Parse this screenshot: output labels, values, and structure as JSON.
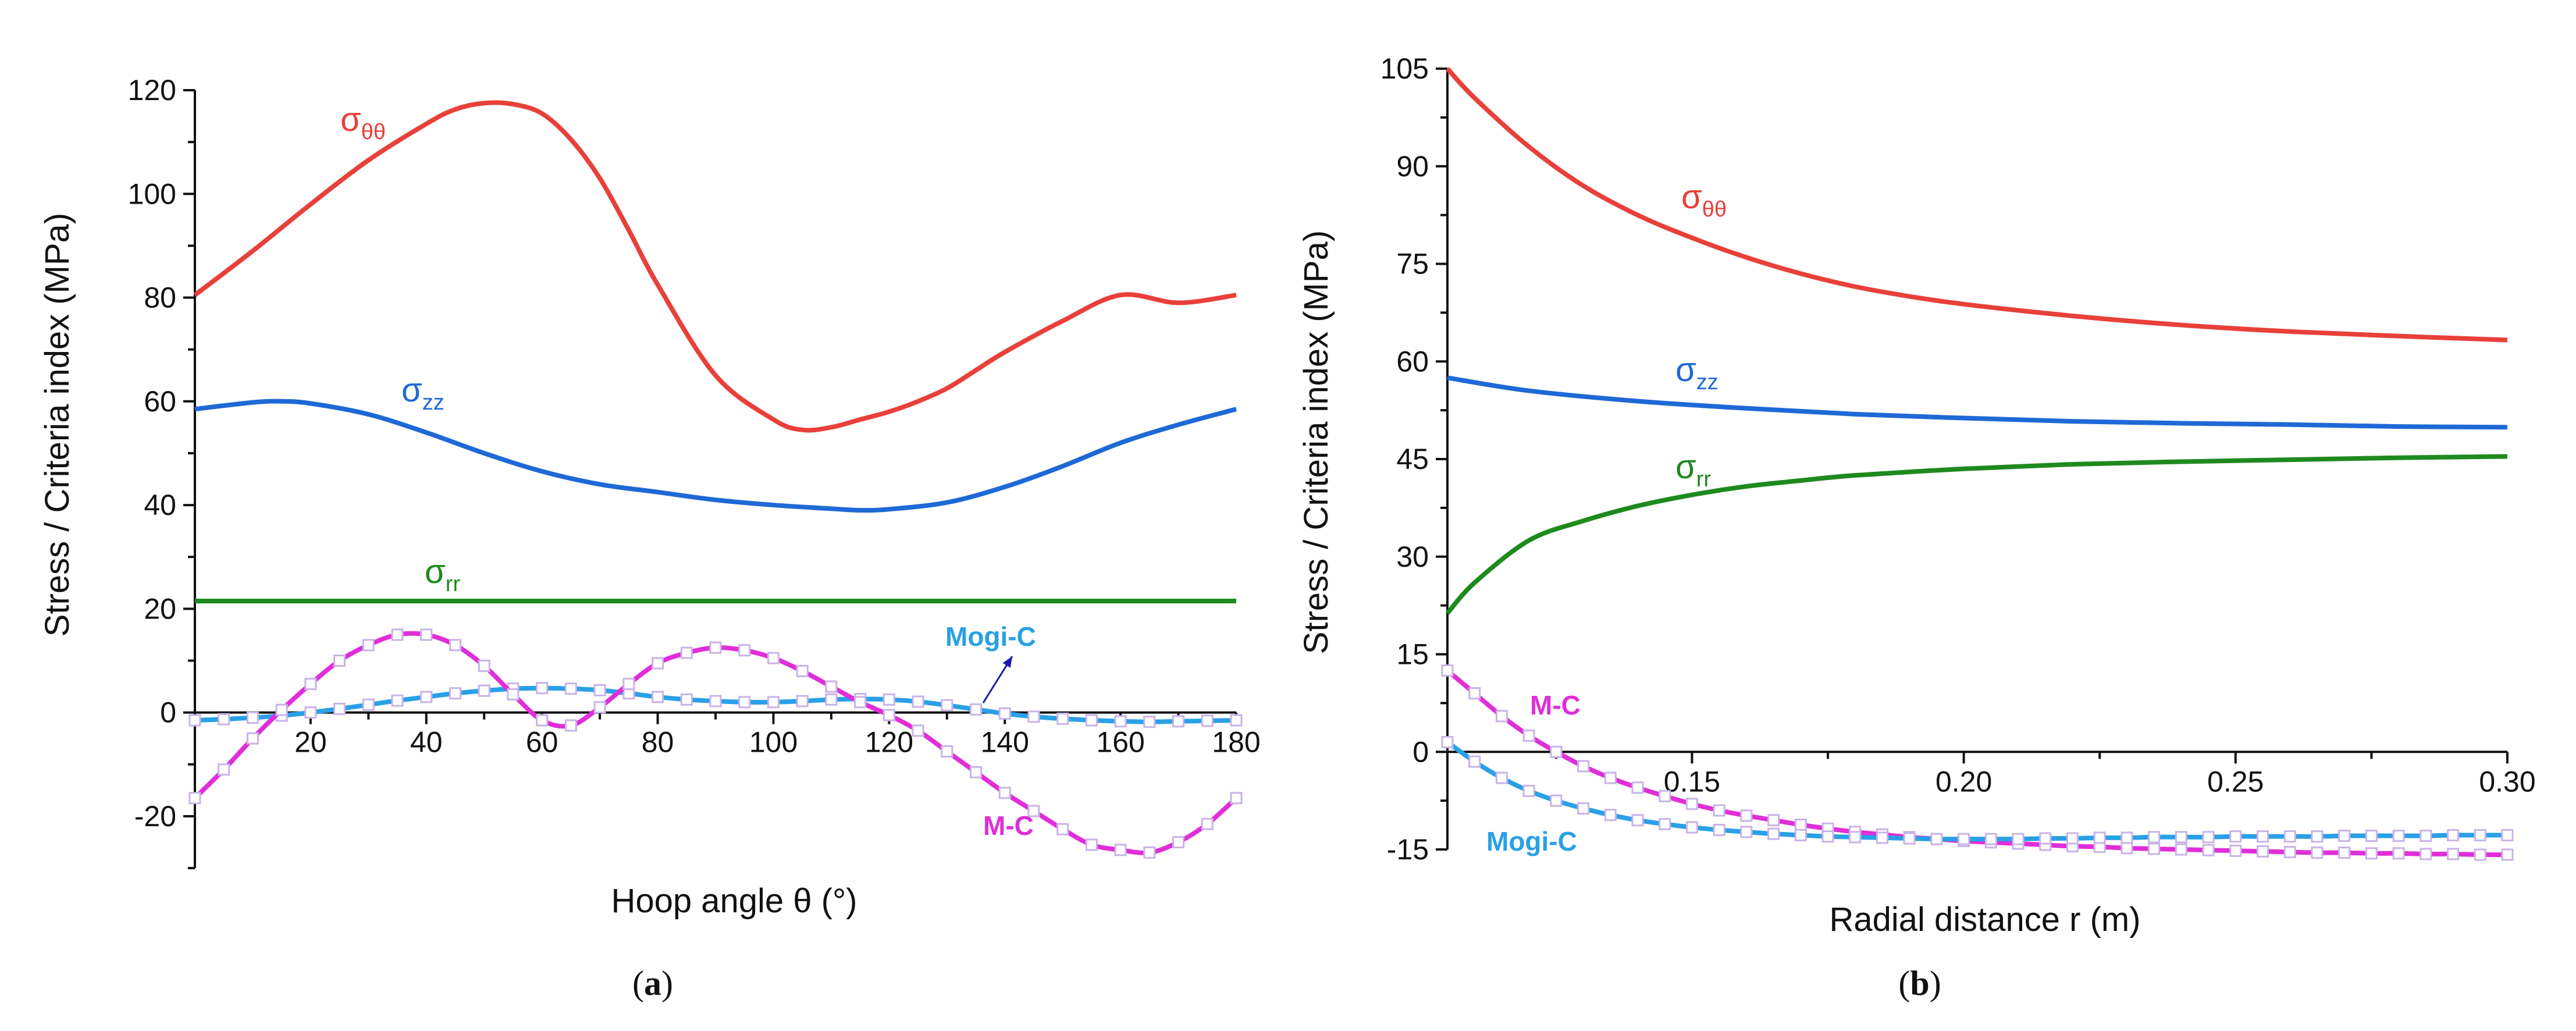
{
  "chart_data": [
    {
      "type": "line",
      "panel_label": "(a)",
      "panel_label_parts": [
        "(",
        "a",
        ")"
      ],
      "xlabel": "Hoop angle θ (°)",
      "ylabel": "Stress / Criteria index  (MPa)",
      "xlim": [
        0,
        180
      ],
      "ylim": [
        -30,
        120
      ],
      "xticks": [
        20,
        40,
        60,
        80,
        100,
        120,
        140,
        160,
        180
      ],
      "yticks": [
        120,
        100,
        80,
        60,
        40,
        20,
        0,
        -20
      ],
      "grid": false,
      "series": [
        {
          "name": "σθθ",
          "label_base": "σ",
          "label_sub": "θθ",
          "color": "#e8403a",
          "marker": "none",
          "x": [
            0,
            10,
            20,
            30,
            40,
            45,
            50,
            55,
            60,
            65,
            70,
            75,
            80,
            90,
            100,
            105,
            110,
            115,
            120,
            125,
            130,
            135,
            140,
            150,
            160,
            170,
            180
          ],
          "y": [
            80.5,
            89,
            98,
            106.5,
            113.5,
            116.3,
            117.5,
            117.3,
            115.5,
            110.5,
            103,
            93,
            82.5,
            65,
            56.5,
            54.5,
            55,
            56.5,
            58,
            60,
            62.5,
            66,
            69.5,
            75.5,
            80.5,
            79,
            80.5
          ]
        },
        {
          "name": "σzz",
          "label_base": "σ",
          "label_sub": "zz",
          "color": "#1f69d6",
          "marker": "none",
          "x": [
            0,
            10,
            15,
            20,
            30,
            40,
            50,
            60,
            70,
            80,
            90,
            100,
            110,
            115,
            120,
            130,
            140,
            150,
            160,
            170,
            180
          ],
          "y": [
            58.5,
            59.8,
            60,
            59.6,
            57.5,
            54,
            50,
            46.5,
            44,
            42.5,
            41,
            40,
            39.3,
            39,
            39.2,
            40.5,
            43.5,
            47.5,
            52,
            55.5,
            58.5
          ]
        },
        {
          "name": "σrr",
          "label_base": "σ",
          "label_sub": "rr",
          "color": "#1e8a1e",
          "marker": "none",
          "x": [
            0,
            180
          ],
          "y": [
            21.5,
            21.5
          ]
        },
        {
          "name": "Mogi-C",
          "color": "#2aa0e6",
          "marker": "square",
          "x": [
            0,
            5,
            10,
            15,
            20,
            25,
            30,
            35,
            40,
            45,
            50,
            55,
            60,
            65,
            70,
            75,
            80,
            85,
            90,
            95,
            100,
            105,
            110,
            115,
            120,
            125,
            130,
            135,
            140,
            145,
            150,
            155,
            160,
            165,
            170,
            175,
            180
          ],
          "y": [
            -1.5,
            -1.3,
            -1,
            -0.6,
            0,
            0.7,
            1.5,
            2.3,
            3,
            3.7,
            4.2,
            4.6,
            4.7,
            4.6,
            4.3,
            3.7,
            3,
            2.5,
            2.2,
            2,
            2,
            2.2,
            2.5,
            2.6,
            2.5,
            2.1,
            1.4,
            0.6,
            -0.2,
            -0.8,
            -1.2,
            -1.5,
            -1.7,
            -1.8,
            -1.7,
            -1.6,
            -1.5
          ]
        },
        {
          "name": "M-C",
          "color": "#e02ed8",
          "marker": "square",
          "x": [
            0,
            5,
            10,
            15,
            20,
            25,
            30,
            35,
            40,
            45,
            50,
            55,
            60,
            65,
            70,
            75,
            80,
            85,
            90,
            95,
            100,
            105,
            110,
            115,
            120,
            125,
            130,
            135,
            140,
            145,
            150,
            155,
            160,
            165,
            170,
            175,
            180
          ],
          "y": [
            -16.5,
            -11,
            -5,
            0.5,
            5.5,
            10,
            13,
            15,
            15,
            13,
            9,
            3.5,
            -1.5,
            -2.5,
            1,
            5.5,
            9.5,
            11.5,
            12.5,
            12,
            10.5,
            8,
            5,
            2,
            -0.5,
            -3.5,
            -7.5,
            -11.5,
            -15.5,
            -19,
            -22.5,
            -25.5,
            -26.5,
            -27,
            -25,
            -21.5,
            -16.5
          ]
        }
      ],
      "annotations": [
        {
          "text": "Mogi-C",
          "target_series": "Mogi-C",
          "arrow": true
        }
      ]
    },
    {
      "type": "line",
      "panel_label": "(b)",
      "panel_label_parts": [
        "(",
        "b",
        ")"
      ],
      "xlabel": "Radial distance r (m)",
      "ylabel": "Stress / Criteria index  (MPa)",
      "xlim": [
        0.105,
        0.3
      ],
      "ylim": [
        -15,
        105
      ],
      "xticks": [
        "0.15",
        "0.20",
        "0.25",
        "0.30"
      ],
      "yticks": [
        "105",
        "90",
        "75",
        "60",
        "45",
        "30",
        "15",
        "0",
        "-15"
      ],
      "grid": false,
      "series": [
        {
          "name": "σθθ",
          "label_base": "σ",
          "label_sub": "θθ",
          "color": "#e8403a",
          "marker": "none",
          "x": [
            0.105,
            0.11,
            0.12,
            0.13,
            0.14,
            0.15,
            0.16,
            0.17,
            0.18,
            0.19,
            0.2,
            0.22,
            0.24,
            0.26,
            0.28,
            0.3
          ],
          "y": [
            105,
            100.5,
            93,
            87,
            82.5,
            79,
            76,
            73.5,
            71.5,
            70,
            68.8,
            67,
            65.6,
            64.6,
            63.9,
            63.3
          ]
        },
        {
          "name": "σzz",
          "label_base": "σ",
          "label_sub": "zz",
          "color": "#1f69d6",
          "marker": "none",
          "x": [
            0.105,
            0.12,
            0.14,
            0.16,
            0.18,
            0.2,
            0.22,
            0.24,
            0.26,
            0.28,
            0.3
          ],
          "y": [
            57.5,
            55.5,
            53.9,
            52.8,
            51.9,
            51.3,
            50.8,
            50.5,
            50.3,
            50,
            49.9
          ]
        },
        {
          "name": "σrr",
          "label_base": "σ",
          "label_sub": "rr",
          "color": "#1e8a1e",
          "marker": "none",
          "x": [
            0.105,
            0.11,
            0.12,
            0.13,
            0.14,
            0.15,
            0.16,
            0.17,
            0.18,
            0.2,
            0.22,
            0.24,
            0.26,
            0.28,
            0.3
          ],
          "y": [
            21.3,
            26,
            32.5,
            35.5,
            37.8,
            39.5,
            40.8,
            41.7,
            42.5,
            43.5,
            44.2,
            44.6,
            44.9,
            45.2,
            45.4
          ]
        },
        {
          "name": "M-C",
          "color": "#e02ed8",
          "marker": "square",
          "x": [
            0.105,
            0.11,
            0.115,
            0.12,
            0.125,
            0.13,
            0.135,
            0.14,
            0.145,
            0.15,
            0.155,
            0.16,
            0.165,
            0.17,
            0.175,
            0.18,
            0.185,
            0.19,
            0.195,
            0.2,
            0.205,
            0.21,
            0.215,
            0.22,
            0.225,
            0.23,
            0.235,
            0.24,
            0.245,
            0.25,
            0.255,
            0.26,
            0.265,
            0.27,
            0.275,
            0.28,
            0.285,
            0.29,
            0.295,
            0.3
          ],
          "y": [
            12.5,
            9,
            5.5,
            2.5,
            0,
            -2.2,
            -4,
            -5.5,
            -6.8,
            -8,
            -9,
            -9.8,
            -10.5,
            -11.2,
            -11.8,
            -12.3,
            -12.7,
            -13.1,
            -13.4,
            -13.7,
            -13.9,
            -14.1,
            -14.3,
            -14.5,
            -14.6,
            -14.8,
            -14.9,
            -15,
            -15.1,
            -15.2,
            -15.3,
            -15.4,
            -15.5,
            -15.5,
            -15.6,
            -15.6,
            -15.7,
            -15.7,
            -15.8,
            -15.8
          ]
        },
        {
          "name": "Mogi-C",
          "color": "#2aa0e6",
          "marker": "square",
          "x": [
            0.105,
            0.11,
            0.115,
            0.12,
            0.125,
            0.13,
            0.135,
            0.14,
            0.145,
            0.15,
            0.155,
            0.16,
            0.165,
            0.17,
            0.175,
            0.18,
            0.185,
            0.19,
            0.195,
            0.2,
            0.205,
            0.21,
            0.215,
            0.22,
            0.225,
            0.23,
            0.235,
            0.24,
            0.245,
            0.25,
            0.255,
            0.26,
            0.265,
            0.27,
            0.275,
            0.28,
            0.285,
            0.29,
            0.295,
            0.3
          ],
          "y": [
            1.5,
            -1.5,
            -4,
            -6,
            -7.5,
            -8.7,
            -9.7,
            -10.5,
            -11.1,
            -11.6,
            -12,
            -12.3,
            -12.6,
            -12.8,
            -13,
            -13.1,
            -13.2,
            -13.3,
            -13.4,
            -13.4,
            -13.4,
            -13.4,
            -13.3,
            -13.3,
            -13.2,
            -13.2,
            -13.1,
            -13.1,
            -13.1,
            -13,
            -13,
            -13,
            -13,
            -12.9,
            -12.9,
            -12.9,
            -12.9,
            -12.8,
            -12.8,
            -12.8
          ]
        }
      ],
      "annotations": []
    }
  ]
}
